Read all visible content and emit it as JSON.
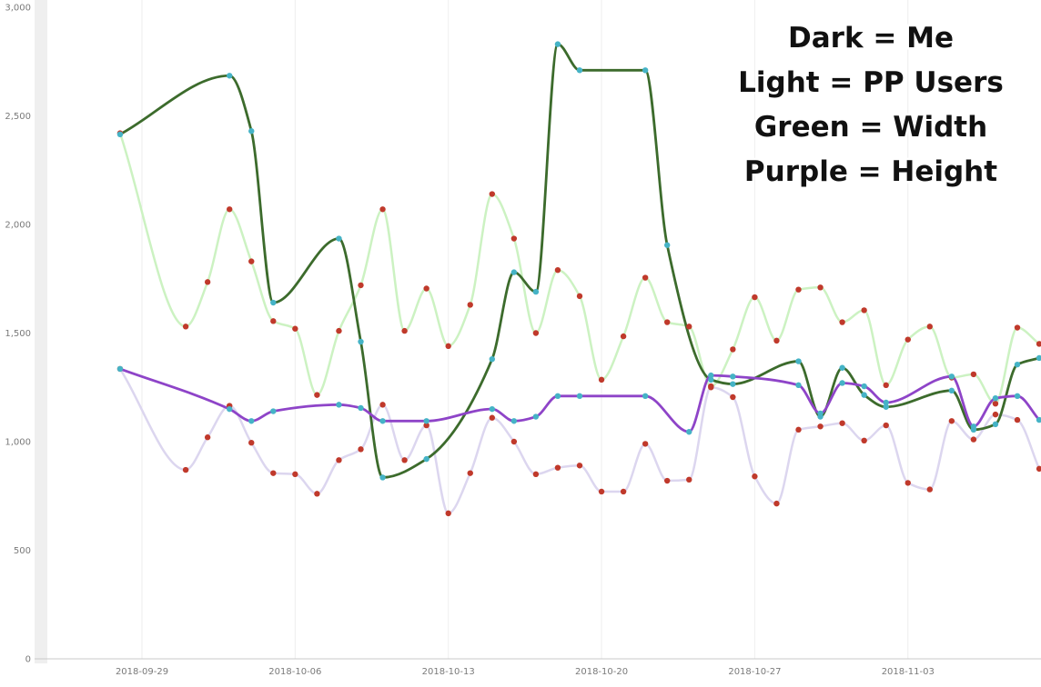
{
  "chart_data": {
    "type": "line",
    "x_axis": {
      "type": "date",
      "range": [
        "2018-09-26",
        "2018-11-10"
      ],
      "tick_labels": [
        "2018-09-29",
        "2018-10-06",
        "2018-10-13",
        "2018-10-20",
        "2018-10-27",
        "2018-11-03"
      ]
    },
    "y_axis": {
      "range": [
        0,
        3000
      ],
      "tick_values": [
        0,
        500,
        1000,
        1500,
        2000,
        2500,
        3000
      ],
      "tick_labels": [
        "0",
        "500",
        "1,000",
        "1,500",
        "2,000",
        "2,500",
        "3,000"
      ]
    },
    "grid": {
      "vertical": true,
      "horizontal": false
    },
    "annotations": [
      "Dark = Me",
      "Light = PP Users",
      "Green = Width",
      "Purple = Height"
    ],
    "series": [
      {
        "color": "#ccf2c2",
        "marker_color": "#c0392b",
        "points": [
          [
            "2018-09-28",
            2420
          ],
          [
            "2018-10-01",
            1530
          ],
          [
            "2018-10-02",
            1735
          ],
          [
            "2018-10-03",
            2070
          ],
          [
            "2018-10-04",
            1830
          ],
          [
            "2018-10-05",
            1555
          ],
          [
            "2018-10-06",
            1520
          ],
          [
            "2018-10-07",
            1215
          ],
          [
            "2018-10-08",
            1510
          ],
          [
            "2018-10-09",
            1720
          ],
          [
            "2018-10-10",
            2070
          ],
          [
            "2018-10-11",
            1510
          ],
          [
            "2018-10-12",
            1705
          ],
          [
            "2018-10-13",
            1440
          ],
          [
            "2018-10-14",
            1630
          ],
          [
            "2018-10-15",
            2140
          ],
          [
            "2018-10-16",
            1935
          ],
          [
            "2018-10-17",
            1500
          ],
          [
            "2018-10-18",
            1790
          ],
          [
            "2018-10-19",
            1670
          ],
          [
            "2018-10-20",
            1285
          ],
          [
            "2018-10-21",
            1485
          ],
          [
            "2018-10-22",
            1755
          ],
          [
            "2018-10-23",
            1550
          ],
          [
            "2018-10-24",
            1530
          ],
          [
            "2018-10-25",
            1255
          ],
          [
            "2018-10-26",
            1425
          ],
          [
            "2018-10-27",
            1665
          ],
          [
            "2018-10-28",
            1465
          ],
          [
            "2018-10-29",
            1700
          ],
          [
            "2018-10-30",
            1710
          ],
          [
            "2018-10-31",
            1550
          ],
          [
            "2018-11-01",
            1605
          ],
          [
            "2018-11-02",
            1260
          ],
          [
            "2018-11-03",
            1470
          ],
          [
            "2018-11-04",
            1530
          ],
          [
            "2018-11-05",
            1295
          ],
          [
            "2018-11-06",
            1310
          ],
          [
            "2018-11-07",
            1175
          ],
          [
            "2018-11-08",
            1525
          ],
          [
            "2018-11-09",
            1450
          ]
        ]
      },
      {
        "color": "#dcd6ef",
        "marker_color": "#c0392b",
        "points": [
          [
            "2018-09-28",
            1335
          ],
          [
            "2018-10-01",
            870
          ],
          [
            "2018-10-02",
            1020
          ],
          [
            "2018-10-03",
            1165
          ],
          [
            "2018-10-04",
            995
          ],
          [
            "2018-10-05",
            855
          ],
          [
            "2018-10-06",
            850
          ],
          [
            "2018-10-07",
            760
          ],
          [
            "2018-10-08",
            915
          ],
          [
            "2018-10-09",
            965
          ],
          [
            "2018-10-10",
            1170
          ],
          [
            "2018-10-11",
            915
          ],
          [
            "2018-10-12",
            1075
          ],
          [
            "2018-10-13",
            670
          ],
          [
            "2018-10-14",
            855
          ],
          [
            "2018-10-15",
            1110
          ],
          [
            "2018-10-16",
            1000
          ],
          [
            "2018-10-17",
            850
          ],
          [
            "2018-10-18",
            880
          ],
          [
            "2018-10-19",
            890
          ],
          [
            "2018-10-20",
            770
          ],
          [
            "2018-10-21",
            770
          ],
          [
            "2018-10-22",
            990
          ],
          [
            "2018-10-23",
            820
          ],
          [
            "2018-10-24",
            825
          ],
          [
            "2018-10-25",
            1250
          ],
          [
            "2018-10-26",
            1205
          ],
          [
            "2018-10-27",
            840
          ],
          [
            "2018-10-28",
            715
          ],
          [
            "2018-10-29",
            1055
          ],
          [
            "2018-10-30",
            1070
          ],
          [
            "2018-10-31",
            1085
          ],
          [
            "2018-11-01",
            1005
          ],
          [
            "2018-11-02",
            1075
          ],
          [
            "2018-11-03",
            810
          ],
          [
            "2018-11-04",
            780
          ],
          [
            "2018-11-05",
            1095
          ],
          [
            "2018-11-06",
            1010
          ],
          [
            "2018-11-07",
            1125
          ],
          [
            "2018-11-08",
            1100
          ],
          [
            "2018-11-09",
            875
          ]
        ]
      },
      {
        "color": "#3c6b2c",
        "marker_color": "#45b3c6",
        "points": [
          [
            "2018-09-28",
            2415
          ],
          [
            "2018-10-03",
            2685
          ],
          [
            "2018-10-04",
            2430
          ],
          [
            "2018-10-05",
            1640
          ],
          [
            "2018-10-08",
            1935
          ],
          [
            "2018-10-09",
            1460
          ],
          [
            "2018-10-10",
            835
          ],
          [
            "2018-10-12",
            920
          ],
          [
            "2018-10-15",
            1380
          ],
          [
            "2018-10-16",
            1780
          ],
          [
            "2018-10-17",
            1690
          ],
          [
            "2018-10-18",
            2830
          ],
          [
            "2018-10-19",
            2710
          ],
          [
            "2018-10-22",
            2710
          ],
          [
            "2018-10-23",
            1905
          ],
          [
            "2018-10-25",
            1285
          ],
          [
            "2018-10-26",
            1265
          ],
          [
            "2018-10-29",
            1370
          ],
          [
            "2018-10-30",
            1115
          ],
          [
            "2018-10-31",
            1340
          ],
          [
            "2018-11-01",
            1215
          ],
          [
            "2018-11-02",
            1160
          ],
          [
            "2018-11-05",
            1235
          ],
          [
            "2018-11-06",
            1055
          ],
          [
            "2018-11-07",
            1080
          ],
          [
            "2018-11-08",
            1355
          ],
          [
            "2018-11-09",
            1385
          ]
        ]
      },
      {
        "color": "#8e44c8",
        "marker_color": "#45b3c6",
        "points": [
          [
            "2018-09-28",
            1335
          ],
          [
            "2018-10-03",
            1150
          ],
          [
            "2018-10-04",
            1095
          ],
          [
            "2018-10-05",
            1140
          ],
          [
            "2018-10-08",
            1170
          ],
          [
            "2018-10-09",
            1155
          ],
          [
            "2018-10-10",
            1095
          ],
          [
            "2018-10-12",
            1095
          ],
          [
            "2018-10-15",
            1150
          ],
          [
            "2018-10-16",
            1095
          ],
          [
            "2018-10-17",
            1115
          ],
          [
            "2018-10-18",
            1210
          ],
          [
            "2018-10-19",
            1210
          ],
          [
            "2018-10-22",
            1210
          ],
          [
            "2018-10-24",
            1045
          ],
          [
            "2018-10-25",
            1305
          ],
          [
            "2018-10-26",
            1300
          ],
          [
            "2018-10-29",
            1260
          ],
          [
            "2018-10-30",
            1130
          ],
          [
            "2018-10-31",
            1270
          ],
          [
            "2018-11-01",
            1255
          ],
          [
            "2018-11-02",
            1180
          ],
          [
            "2018-11-05",
            1300
          ],
          [
            "2018-11-06",
            1070
          ],
          [
            "2018-11-07",
            1200
          ],
          [
            "2018-11-08",
            1210
          ],
          [
            "2018-11-09",
            1100
          ]
        ]
      }
    ]
  }
}
